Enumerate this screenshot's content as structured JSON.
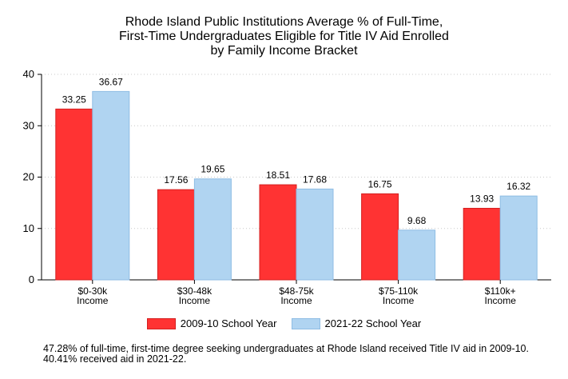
{
  "chart_data": {
    "type": "bar",
    "title_lines": [
      "Rhode Island Public Institutions Average % of Full-Time,",
      "First-Time Undergraduates Eligible for Title IV Aid Enrolled",
      "by Family Income Bracket"
    ],
    "categories": [
      [
        "$0-30k",
        "Income"
      ],
      [
        "$30-48k",
        "Income"
      ],
      [
        "$48-75k",
        "Income"
      ],
      [
        "$75-110k",
        "Income"
      ],
      [
        "$110k+",
        "Income"
      ]
    ],
    "series": [
      {
        "name": "2009-10 School Year",
        "values": [
          33.25,
          17.56,
          18.51,
          16.75,
          13.93
        ],
        "color": "#ff3333"
      },
      {
        "name": "2021-22 School Year",
        "values": [
          36.67,
          19.65,
          17.68,
          9.68,
          16.32
        ],
        "color": "#b0d4f1"
      }
    ],
    "ylim": [
      0,
      40
    ],
    "yticks": [
      0,
      10,
      20,
      30,
      40
    ],
    "grid": true,
    "legend_position": "bottom",
    "xlabel": "",
    "ylabel": ""
  },
  "footnote": "47.28% of full-time, first-time degree seeking undergraduates at Rhode Island received Title IV aid in 2009-10. 40.41% received aid in 2021-22."
}
